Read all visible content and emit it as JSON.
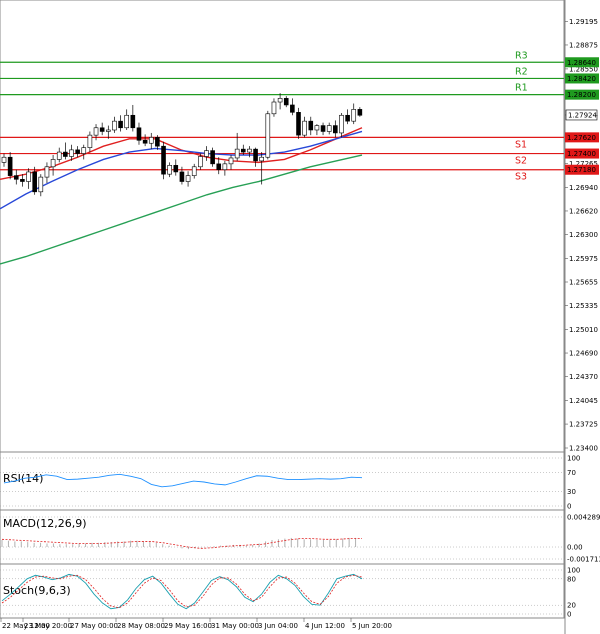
{
  "chart_data": {
    "type": "candlestick",
    "symbol": "GBPUSD",
    "price_scale": {
      "min": 1.234,
      "max": 1.2935,
      "ticks": [
        "1.29195",
        "1.28875",
        "1.28550",
        "1.27924",
        "1.27265",
        "1.26940",
        "1.26620",
        "1.26300",
        "1.25975",
        "1.25655",
        "1.25335",
        "1.25010",
        "1.24690",
        "1.24370",
        "1.24045",
        "1.23725",
        "1.23400"
      ]
    },
    "current_price": "1.27924",
    "resistance": [
      {
        "name": "R3",
        "value": 1.2864,
        "label": "1.28640"
      },
      {
        "name": "R2",
        "value": 1.2842,
        "label": "1.28420"
      },
      {
        "name": "R1",
        "value": 1.282,
        "label": "1.28200"
      }
    ],
    "support": [
      {
        "name": "S1",
        "value": 1.2762,
        "label": "1.27620"
      },
      {
        "name": "S2",
        "value": 1.274,
        "label": "1.27400"
      },
      {
        "name": "S3",
        "value": 1.2718,
        "label": "1.27180"
      }
    ],
    "time_labels": [
      "22 May 12:00",
      "23 May 20:00",
      "27 May 00:00",
      "28 May 08:00",
      "29 May 16:00",
      "31 May 00:00",
      "3 Jun 04:00",
      "4 Jun 12:00",
      "5 Jun 20:00"
    ],
    "candles": [
      [
        1.2728,
        1.274,
        1.2722,
        1.2735
      ],
      [
        1.2735,
        1.2742,
        1.2705,
        1.271
      ],
      [
        1.271,
        1.2718,
        1.2698,
        1.2705
      ],
      [
        1.2705,
        1.2712,
        1.2695,
        1.2702
      ],
      [
        1.2702,
        1.272,
        1.2692,
        1.2715
      ],
      [
        1.2715,
        1.2722,
        1.2684,
        1.2688
      ],
      [
        1.2688,
        1.2712,
        1.2682,
        1.2708
      ],
      [
        1.2708,
        1.2728,
        1.27,
        1.2722
      ],
      [
        1.2722,
        1.2738,
        1.271,
        1.2732
      ],
      [
        1.2732,
        1.2748,
        1.2728,
        1.2742
      ],
      [
        1.2742,
        1.2755,
        1.2732,
        1.2736
      ],
      [
        1.2736,
        1.2752,
        1.273,
        1.2745
      ],
      [
        1.2745,
        1.275,
        1.2735,
        1.274
      ],
      [
        1.274,
        1.2752,
        1.2732,
        1.2748
      ],
      [
        1.2748,
        1.277,
        1.2742,
        1.2765
      ],
      [
        1.2765,
        1.278,
        1.2758,
        1.2775
      ],
      [
        1.2775,
        1.2782,
        1.2765,
        1.277
      ],
      [
        1.277,
        1.2778,
        1.276,
        1.2772
      ],
      [
        1.2772,
        1.279,
        1.2768,
        1.2784
      ],
      [
        1.2784,
        1.2792,
        1.277,
        1.2775
      ],
      [
        1.2775,
        1.28,
        1.2772,
        1.2792
      ],
      [
        1.2792,
        1.2806,
        1.277,
        1.2775
      ],
      [
        1.2775,
        1.2782,
        1.2752,
        1.2758
      ],
      [
        1.2758,
        1.2766,
        1.275,
        1.2754
      ],
      [
        1.2754,
        1.2768,
        1.2746,
        1.2762
      ],
      [
        1.2762,
        1.2765,
        1.2745,
        1.275
      ],
      [
        1.275,
        1.2756,
        1.2705,
        1.2712
      ],
      [
        1.2712,
        1.2728,
        1.2708,
        1.2724
      ],
      [
        1.2724,
        1.2732,
        1.271,
        1.2715
      ],
      [
        1.2715,
        1.2722,
        1.2698,
        1.2702
      ],
      [
        1.2702,
        1.2716,
        1.2695,
        1.271
      ],
      [
        1.271,
        1.2726,
        1.2706,
        1.2722
      ],
      [
        1.2722,
        1.274,
        1.2718,
        1.2736
      ],
      [
        1.2736,
        1.275,
        1.273,
        1.2744
      ],
      [
        1.2744,
        1.2748,
        1.2722,
        1.2726
      ],
      [
        1.2726,
        1.2735,
        1.2712,
        1.2718
      ],
      [
        1.2718,
        1.273,
        1.271,
        1.2726
      ],
      [
        1.2726,
        1.2738,
        1.2718,
        1.2734
      ],
      [
        1.2734,
        1.2768,
        1.273,
        1.2746
      ],
      [
        1.2746,
        1.2752,
        1.2738,
        1.2742
      ],
      [
        1.2742,
        1.275,
        1.2735,
        1.2746
      ],
      [
        1.2746,
        1.2748,
        1.2722,
        1.273
      ],
      [
        1.273,
        1.2742,
        1.2698,
        1.2735
      ],
      [
        1.2735,
        1.2798,
        1.2732,
        1.2794
      ],
      [
        1.2794,
        1.2815,
        1.279,
        1.281
      ],
      [
        1.281,
        1.2822,
        1.28,
        1.2815
      ],
      [
        1.2815,
        1.2818,
        1.2803,
        1.2806
      ],
      [
        1.2806,
        1.2815,
        1.2792,
        1.2796
      ],
      [
        1.2796,
        1.2802,
        1.276,
        1.2765
      ],
      [
        1.2765,
        1.279,
        1.2762,
        1.2784
      ],
      [
        1.2784,
        1.279,
        1.2765,
        1.2772
      ],
      [
        1.2772,
        1.278,
        1.2765,
        1.2778
      ],
      [
        1.2778,
        1.2782,
        1.2765,
        1.277
      ],
      [
        1.277,
        1.2782,
        1.2766,
        1.2778
      ],
      [
        1.2778,
        1.2785,
        1.2762,
        1.2768
      ],
      [
        1.2768,
        1.2795,
        1.2762,
        1.2792
      ],
      [
        1.2792,
        1.28,
        1.278,
        1.2784
      ],
      [
        1.2784,
        1.2808,
        1.278,
        1.28
      ],
      [
        1.28,
        1.2803,
        1.279,
        1.2792
      ]
    ],
    "moving_averages": [
      {
        "name": "MA fast",
        "color": "#e02020",
        "points": [
          1.2705,
          1.2712,
          1.2722,
          1.2735,
          1.275,
          1.276,
          1.276,
          1.2745,
          1.2735,
          1.273,
          1.2728,
          1.2732,
          1.2745,
          1.276,
          1.2775
        ]
      },
      {
        "name": "MA medium",
        "color": "#2848d8",
        "points": [
          1.2665,
          1.2685,
          1.2702,
          1.2718,
          1.2732,
          1.2742,
          1.2747,
          1.2744,
          1.274,
          1.2738,
          1.2738,
          1.2742,
          1.275,
          1.276,
          1.277
        ]
      },
      {
        "name": "MA slow",
        "color": "#27a055",
        "points": [
          1.259,
          1.26,
          1.2612,
          1.2624,
          1.2636,
          1.2648,
          1.266,
          1.2672,
          1.2684,
          1.2694,
          1.2702,
          1.2712,
          1.2722,
          1.273,
          1.2738
        ]
      }
    ],
    "indicators": {
      "rsi": {
        "title": "RSI(14)",
        "levels": [
          "100",
          "70",
          "30",
          "0"
        ],
        "values": [
          48,
          52,
          58,
          60,
          65,
          62,
          55,
          56,
          58,
          60,
          64,
          66,
          62,
          57,
          45,
          40,
          42,
          47,
          52,
          50,
          46,
          44,
          50,
          57,
          63,
          62,
          58,
          55,
          55,
          56,
          57,
          56,
          57,
          60,
          59
        ]
      },
      "macd": {
        "title": "MACD(12,26,9)",
        "levels": [
          "0.004289",
          "0.00",
          "-0.001713"
        ],
        "histogram": [
          0.001,
          0.0009,
          0.0008,
          0.0008,
          0.0007,
          0.0006,
          0.0006,
          0.0005,
          0.0005,
          0.0004,
          0.0004,
          0.0004,
          0.0005,
          0.0005,
          0.0006,
          0.0006,
          0.0007,
          0.0007,
          0.0008,
          0.0008,
          0.0009,
          0.0009,
          0.0008,
          0.0007,
          0.0006,
          0.0004,
          0.0002,
          0.0,
          -0.0002,
          -0.0003,
          -0.0002,
          -0.0001,
          0.0,
          0.0001,
          0.0002,
          0.0002,
          0.0003,
          0.0003,
          0.0002,
          0.0003,
          0.0005,
          0.0008,
          0.001,
          0.0011,
          0.0012,
          0.0013,
          0.0012,
          0.0011,
          0.0011,
          0.001,
          0.001,
          0.001,
          0.0011,
          0.0012,
          0.0013,
          0.0013
        ],
        "signal": [
          0.0011,
          0.001,
          0.0009,
          0.0008,
          0.0007,
          0.0006,
          0.0005,
          0.0005,
          0.0005,
          0.0006,
          0.0007,
          0.0008,
          0.0008,
          0.0006,
          0.0003,
          0.0,
          -0.0002,
          -0.0001,
          0.0001,
          0.0002,
          0.0003,
          0.0004,
          0.0007,
          0.001,
          0.0012,
          0.0012,
          0.0011,
          0.0011,
          0.0012,
          0.0012
        ]
      },
      "stoch": {
        "title": "Stoch(9,6,3)",
        "levels": [
          "100",
          "80",
          "20",
          "0"
        ],
        "k": [
          30,
          45,
          62,
          80,
          88,
          84,
          78,
          82,
          90,
          86,
          70,
          45,
          25,
          12,
          15,
          32,
          58,
          78,
          86,
          70,
          45,
          22,
          12,
          25,
          50,
          76,
          85,
          78,
          62,
          38,
          28,
          45,
          72,
          88,
          80,
          65,
          40,
          22,
          20,
          48,
          80,
          86,
          90,
          80
        ],
        "d": [
          25,
          38,
          55,
          72,
          84,
          86,
          82,
          80,
          86,
          88,
          78,
          58,
          35,
          18,
          14,
          25,
          48,
          70,
          82,
          76,
          55,
          30,
          16,
          20,
          40,
          66,
          82,
          82,
          68,
          45,
          30,
          38,
          62,
          82,
          84,
          70,
          48,
          28,
          22,
          40,
          70,
          84,
          88,
          84
        ]
      }
    }
  }
}
